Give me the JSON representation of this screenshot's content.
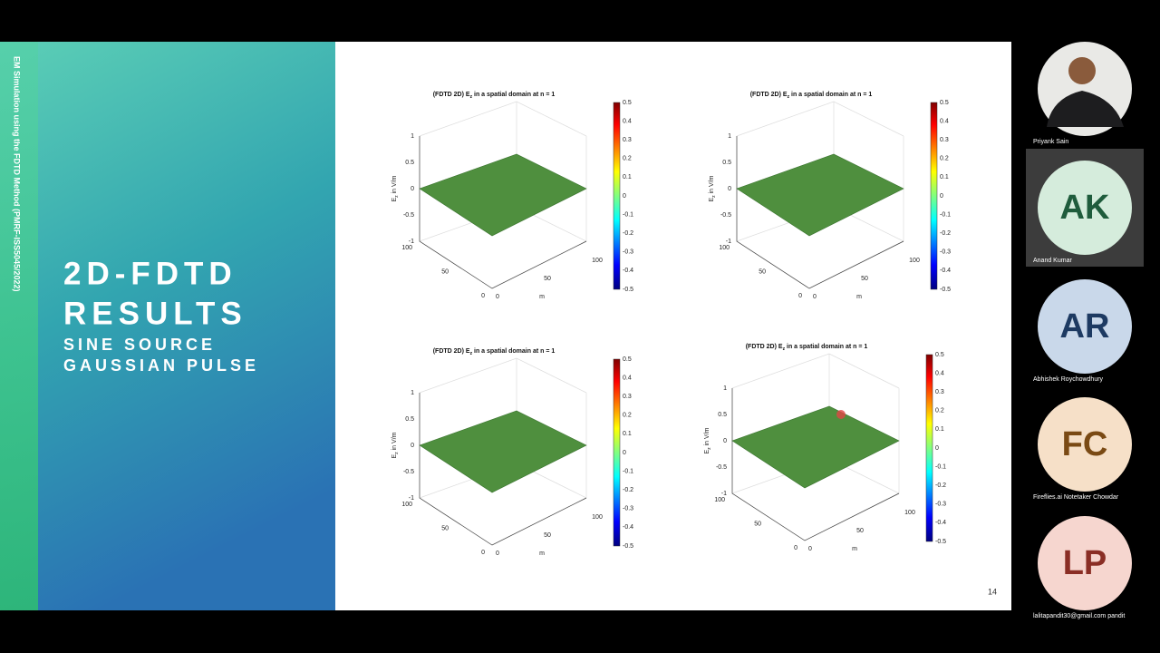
{
  "slide": {
    "sidebar_caption": "EM Simulation using the FDTD Method (PMRF-ISS5045/2022)",
    "heading_lines": [
      "2D-FDTD",
      "RESULTS"
    ],
    "subheading_lines": [
      "SINE SOURCE",
      "GAUSSIAN PULSE"
    ],
    "page_number": "14",
    "plots": [
      {
        "title": [
          "(FDTD 2D) E",
          "z",
          " in a spatial domain at n = 1"
        ],
        "zlabel": [
          "E",
          "z",
          " in V/m"
        ],
        "zticks": [
          1,
          0.5,
          0,
          -0.5,
          -1
        ],
        "left_ticks": [
          100,
          50,
          0
        ],
        "right_ticks": [
          0,
          50,
          100
        ],
        "axis_unit": "m",
        "colorbar_ticks": [
          0.5,
          0.4,
          0.3,
          0.2,
          0.1,
          0,
          -0.1,
          -0.2,
          -0.3,
          -0.4,
          -0.5
        ]
      },
      {
        "title": [
          "(FDTD 2D) E",
          "z",
          " in a spatial domain at n = 1"
        ],
        "zlabel": [
          "E",
          "z",
          " in V/m"
        ],
        "zticks": [
          1,
          0.5,
          0,
          -0.5,
          -1
        ],
        "left_ticks": [
          100,
          50,
          0
        ],
        "right_ticks": [
          0,
          50,
          100
        ],
        "axis_unit": "m",
        "colorbar_ticks": [
          0.5,
          0.4,
          0.3,
          0.2,
          0.1,
          0,
          -0.1,
          -0.2,
          -0.3,
          -0.4,
          -0.5
        ]
      },
      {
        "title": [
          "(FDTD 2D) E",
          "z",
          " in a spatial domain at n = 1"
        ],
        "zlabel": [
          "E",
          "z",
          " in V/m"
        ],
        "zticks": [
          1,
          0.5,
          0,
          -0.5,
          -1
        ],
        "left_ticks": [
          100,
          50,
          0
        ],
        "right_ticks": [
          0,
          50,
          100
        ],
        "axis_unit": "m",
        "colorbar_ticks": [
          0.5,
          0.4,
          0.3,
          0.2,
          0.1,
          0,
          -0.1,
          -0.2,
          -0.3,
          -0.4,
          -0.5
        ]
      },
      {
        "title": [
          "(FDTD 2D) E",
          "z",
          " in a spatial domain at n = 1"
        ],
        "zlabel": [
          "E",
          "z",
          " in V/m"
        ],
        "zticks": [
          1,
          0.5,
          0,
          -0.5,
          -1
        ],
        "left_ticks": [
          100,
          50,
          0
        ],
        "right_ticks": [
          0,
          50,
          100
        ],
        "axis_unit": "m",
        "colorbar_ticks": [
          0.5,
          0.4,
          0.3,
          0.2,
          0.1,
          0,
          -0.1,
          -0.2,
          -0.3,
          -0.4,
          -0.5
        ]
      }
    ]
  },
  "participants": [
    {
      "name": "Priyank Sain"
    },
    {
      "initials": "AK",
      "name": "Anand Kumar"
    },
    {
      "initials": "AR",
      "name": "Abhishek Roychowdhury"
    },
    {
      "initials": "FC",
      "name": "Fireflies.ai Notetaker Chowdar"
    },
    {
      "initials": "LP",
      "name": "lalitapandit30@gmail.com pandit"
    }
  ]
}
